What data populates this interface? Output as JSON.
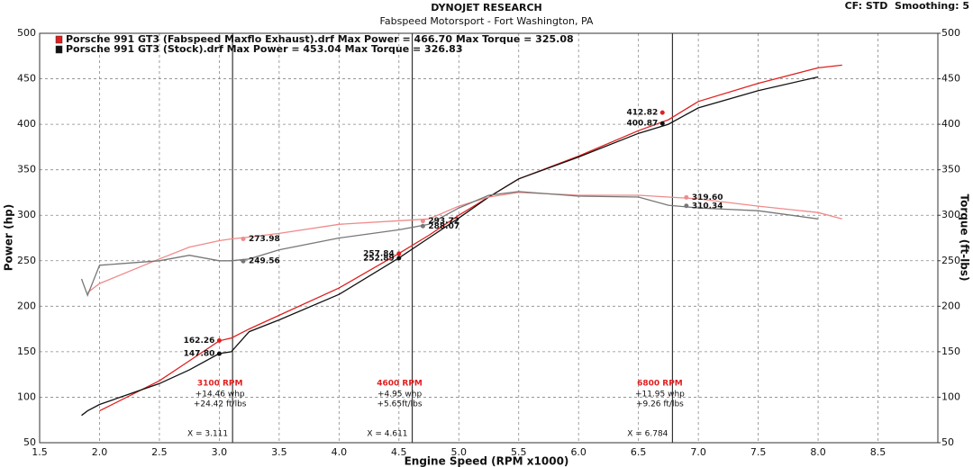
{
  "chart_data": {
    "type": "line",
    "title": "DYNOJET RESEARCH",
    "subtitle": "Fabspeed Motorsport - Fort Washington, PA",
    "corner_text": "CF: STD  Smoothing: 5",
    "x_label": "Engine Speed (RPM x1000)",
    "y_label": "Power (hp)",
    "y2_label": "Torque (ft-lbs)",
    "legend": [
      {
        "text": "Porsche 991 GT3 (Fabspeed Maxflo Exhaust).drf Max Power = 466.70    Max Torque = 325.08",
        "color": "#e02020"
      },
      {
        "text": "Porsche 991 GT3 (Stock).drf Max Power = 453.04    Max Torque = 326.83",
        "color": "#111111"
      }
    ],
    "x": [
      1.85,
      1.9,
      2.0,
      2.5,
      2.75,
      3.0,
      3.1,
      3.25,
      3.5,
      4.0,
      4.5,
      4.75,
      5.0,
      5.25,
      5.5,
      6.0,
      6.5,
      6.75,
      7.0,
      7.5,
      8.0,
      8.2
    ],
    "series": [
      {
        "color": "#e02020",
        "axis": "y",
        "values": [
          null,
          null,
          85,
          118,
          140,
          162,
          165,
          175,
          190,
          220,
          258,
          278,
          300,
          320,
          340,
          365,
          393,
          405,
          425,
          445,
          462,
          465
        ]
      },
      {
        "color": "#111111",
        "axis": "y",
        "values": [
          80,
          85,
          92,
          115,
          130,
          148,
          150,
          172,
          185,
          213,
          253,
          275,
          297,
          320,
          340,
          364,
          390,
          400,
          418,
          437,
          452,
          null
        ]
      },
      {
        "color": "#f08a8a",
        "axis": "y2",
        "values": [
          null,
          215,
          225,
          252,
          265,
          272,
          274,
          276,
          280,
          290,
          294,
          296,
          310,
          320,
          325,
          322,
          322,
          320,
          318,
          310,
          303,
          296
        ]
      },
      {
        "color": "#777777",
        "axis": "y2",
        "values": [
          230,
          212,
          245,
          250,
          256,
          250,
          250,
          252,
          262,
          275,
          284,
          290,
          308,
          322,
          326,
          321,
          320,
          311,
          308,
          305,
          296,
          null
        ]
      }
    ],
    "markers": [
      {
        "x": 3.0,
        "value": 162.26,
        "label": "162.26",
        "color": "#e02020",
        "axis": "y"
      },
      {
        "x": 3.0,
        "value": 147.8,
        "label": "147.80",
        "color": "#111111",
        "axis": "y"
      },
      {
        "x": 4.5,
        "value": 257.84,
        "label": "257.84",
        "color": "#e02020",
        "axis": "y"
      },
      {
        "x": 4.5,
        "value": 252.89,
        "label": "252.89",
        "color": "#111111",
        "axis": "y"
      },
      {
        "x": 6.7,
        "value": 412.82,
        "label": "412.82",
        "color": "#e02020",
        "axis": "y"
      },
      {
        "x": 6.7,
        "value": 400.87,
        "label": "400.87",
        "color": "#111111",
        "axis": "y"
      },
      {
        "x": 3.2,
        "value": 273.98,
        "label": "273.98",
        "color": "#f08a8a",
        "axis": "y2"
      },
      {
        "x": 3.2,
        "value": 249.56,
        "label": "249.56",
        "color": "#777777",
        "axis": "y2"
      },
      {
        "x": 4.7,
        "value": 293.72,
        "label": "293.72",
        "color": "#f08a8a",
        "axis": "y2"
      },
      {
        "x": 4.7,
        "value": 288.07,
        "label": "288.07",
        "color": "#777777",
        "axis": "y2"
      },
      {
        "x": 6.9,
        "value": 319.6,
        "label": "319.60",
        "color": "#f08a8a",
        "axis": "y2"
      },
      {
        "x": 6.9,
        "value": 310.34,
        "label": "310.34",
        "color": "#777777",
        "axis": "y2"
      }
    ],
    "vlines": [
      {
        "value": 3.111,
        "label": "X = 3.111"
      },
      {
        "value": 4.611,
        "label": "X = 4.611"
      },
      {
        "value": 6.784,
        "label": "X = 6.784"
      }
    ],
    "annotations": [
      {
        "title": "3100 RPM",
        "lines": [
          "+14.46 whp",
          "+24.42 ft/lbs"
        ]
      },
      {
        "title": "4600 RPM",
        "lines": [
          "+4.95 whp",
          "+5.65ft/lbs"
        ]
      },
      {
        "title": "6800 RPM",
        "lines": [
          "+11.95 whp",
          "+9.26 ft/lbs"
        ]
      }
    ],
    "xlim": [
      1.5,
      9.0
    ],
    "xticks": [
      {
        "value": 1.5,
        "label": "1.5"
      },
      {
        "value": 2.0,
        "label": "2.0"
      },
      {
        "value": 2.5,
        "label": "2.5"
      },
      {
        "value": 3.0,
        "label": "3.0"
      },
      {
        "value": 3.5,
        "label": "3.5"
      },
      {
        "value": 4.0,
        "label": "4.0"
      },
      {
        "value": 4.5,
        "label": "4.5"
      },
      {
        "value": 5.0,
        "label": "5.0"
      },
      {
        "value": 5.5,
        "label": "5.5"
      },
      {
        "value": 6.0,
        "label": "6.0"
      },
      {
        "value": 6.5,
        "label": "6.5"
      },
      {
        "value": 7.0,
        "label": "7.0"
      },
      {
        "value": 7.5,
        "label": "7.5"
      },
      {
        "value": 8.0,
        "label": "8.0"
      },
      {
        "value": 8.5,
        "label": "8.5"
      }
    ],
    "ylim": [
      50,
      500
    ],
    "yticks": [
      50,
      100,
      150,
      200,
      250,
      300,
      350,
      400,
      450,
      500
    ],
    "y2lim": [
      50,
      500
    ],
    "y2ticks": [
      50,
      100,
      150,
      200,
      250,
      300,
      350,
      400,
      450,
      500
    ],
    "grid": true
  }
}
